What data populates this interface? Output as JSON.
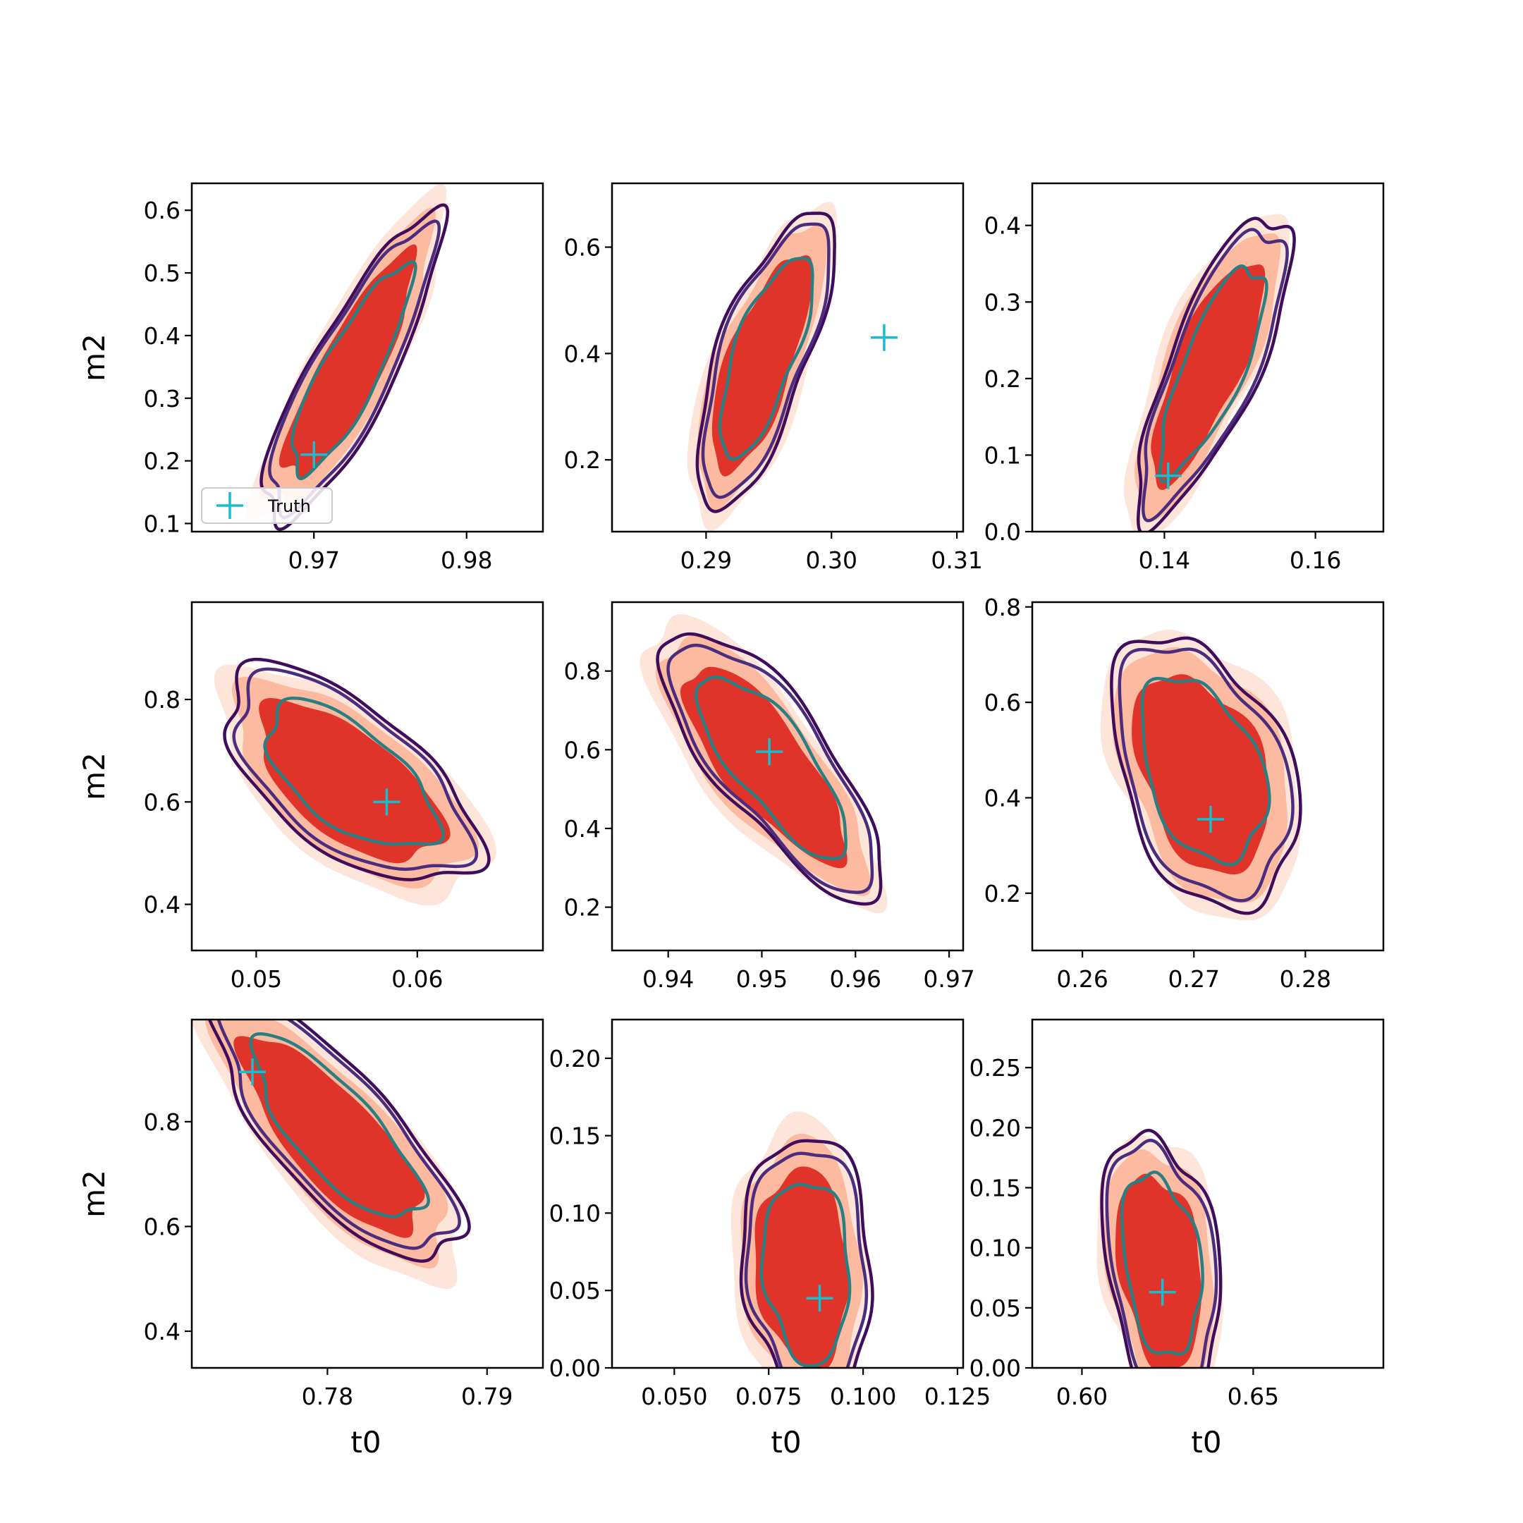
{
  "figure": {
    "colors": {
      "fill_outer": "#fee5d9",
      "fill_mid": "#fcbba1",
      "fill_inner": "#e0332a",
      "line_outer": "#3f0d5c",
      "line_mid": "#4b2d7f",
      "line_inner": "#2a7f83",
      "truth_marker": "#17becf"
    },
    "legend": {
      "label": "Truth"
    }
  },
  "chart_data": [
    {
      "type": "contour",
      "xlabel": "",
      "ylabel": "m2",
      "xlim": [
        0.962,
        0.985
      ],
      "ylim": [
        0.087,
        0.643
      ],
      "xticks": [
        "0.97",
        "0.98"
      ],
      "yticks": [
        "0.1",
        "0.2",
        "0.3",
        "0.4",
        "0.5",
        "0.6"
      ],
      "truth": [
        0.97,
        0.21
      ],
      "center": [
        0.9722,
        0.345
      ],
      "angle": 62,
      "size": [
        0.46,
        0.11
      ],
      "legend": true
    },
    {
      "type": "contour",
      "xlabel": "",
      "ylabel": "",
      "xlim": [
        0.2825,
        0.3105
      ],
      "ylim": [
        0.065,
        0.72
      ],
      "xticks": [
        "0.29",
        "0.30",
        "0.31"
      ],
      "yticks": [
        "0.2",
        "0.4",
        "0.6"
      ],
      "truth": [
        0.3042,
        0.43
      ],
      "center": [
        0.2945,
        0.39
      ],
      "angle": 70,
      "size": [
        0.42,
        0.12
      ]
    },
    {
      "type": "contour",
      "xlabel": "",
      "ylabel": "",
      "xlim": [
        0.1225,
        0.169
      ],
      "ylim": [
        0.0,
        0.455
      ],
      "xticks": [
        "0.14",
        "0.16"
      ],
      "yticks": [
        "0.0",
        "0.1",
        "0.2",
        "0.3",
        "0.4"
      ],
      "truth": [
        0.1405,
        0.073
      ],
      "center": [
        0.1455,
        0.205
      ],
      "angle": 67,
      "size": [
        0.44,
        0.12
      ]
    },
    {
      "type": "contour",
      "xlabel": "",
      "ylabel": "m2",
      "xlim": [
        0.046,
        0.0678
      ],
      "ylim": [
        0.31,
        0.99
      ],
      "xticks": [
        "0.05",
        "0.06"
      ],
      "yticks": [
        "0.4",
        "0.6",
        "0.8"
      ],
      "truth": [
        0.0581,
        0.6
      ],
      "center": [
        0.0558,
        0.64
      ],
      "angle": -38,
      "size": [
        0.4,
        0.19
      ]
    },
    {
      "type": "contour",
      "xlabel": "",
      "ylabel": "",
      "xlim": [
        0.934,
        0.9715
      ],
      "ylim": [
        0.09,
        0.975
      ],
      "xticks": [
        "0.94",
        "0.95",
        "0.96",
        "0.97"
      ],
      "yticks": [
        "0.2",
        "0.4",
        "0.6",
        "0.8"
      ],
      "truth": [
        0.9508,
        0.595
      ],
      "center": [
        0.9505,
        0.555
      ],
      "angle": -52,
      "size": [
        0.44,
        0.15
      ]
    },
    {
      "type": "contour",
      "xlabel": "",
      "ylabel": "",
      "xlim": [
        0.2555,
        0.287
      ],
      "ylim": [
        0.08,
        0.81
      ],
      "xticks": [
        "0.26",
        "0.27",
        "0.28"
      ],
      "yticks": [
        "0.2",
        "0.4",
        "0.6",
        "0.8"
      ],
      "truth": [
        0.2715,
        0.355
      ],
      "center": [
        0.2705,
        0.46
      ],
      "angle": -68,
      "size": [
        0.38,
        0.22
      ]
    },
    {
      "type": "contour",
      "xlabel": "t0",
      "ylabel": "m2",
      "xlim": [
        0.7715,
        0.7935
      ],
      "ylim": [
        0.33,
        0.995
      ],
      "xticks": [
        "0.78",
        "0.79"
      ],
      "yticks": [
        "0.4",
        "0.6",
        "0.8"
      ],
      "truth": [
        0.7753,
        0.895
      ],
      "center": [
        0.7805,
        0.77
      ],
      "angle": -48,
      "size": [
        0.46,
        0.16
      ]
    },
    {
      "type": "contour",
      "xlabel": "t0",
      "ylabel": "",
      "xlim": [
        0.0335,
        0.1265
      ],
      "ylim": [
        0.0,
        0.225
      ],
      "xticks": [
        "0.050",
        "0.075",
        "0.100",
        "0.125"
      ],
      "yticks": [
        "0.00",
        "0.05",
        "0.10",
        "0.15",
        "0.20"
      ],
      "truth": [
        0.0885,
        0.045
      ],
      "center": [
        0.0835,
        0.063
      ],
      "angle": -86,
      "size": [
        0.36,
        0.17
      ]
    },
    {
      "type": "contour",
      "xlabel": "t0",
      "ylabel": "",
      "xlim": [
        0.5855,
        0.688
      ],
      "ylim": [
        0.0,
        0.29
      ],
      "xticks": [
        "0.60",
        "0.65"
      ],
      "yticks": [
        "0.00",
        "0.05",
        "0.10",
        "0.15",
        "0.20",
        "0.25"
      ],
      "truth": [
        0.6235,
        0.063
      ],
      "center": [
        0.6225,
        0.085
      ],
      "angle": -82,
      "size": [
        0.36,
        0.15
      ]
    }
  ]
}
